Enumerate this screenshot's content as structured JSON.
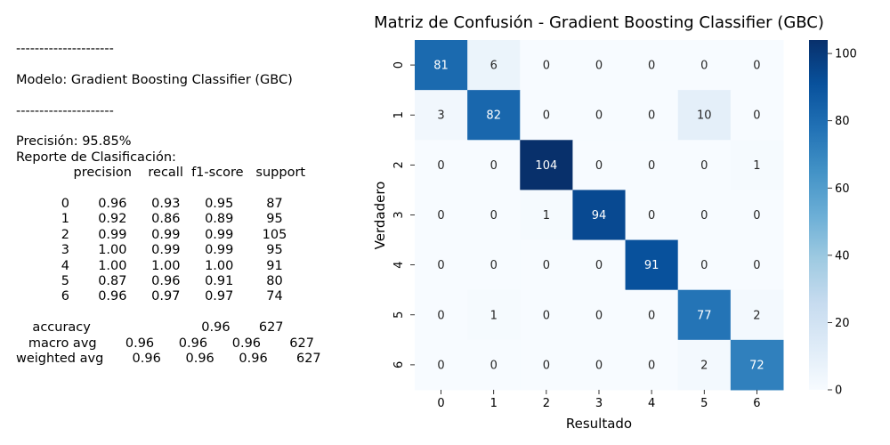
{
  "report_lines": [
    "---------------------",
    "",
    "Modelo: Gradient Boosting Classifier (GBC)",
    "",
    "---------------------",
    "",
    "Precisión: 95.85%",
    "Reporte de Clasificación:",
    "              precision    recall  f1-score   support",
    "",
    "           0       0.96      0.93      0.95        87",
    "           1       0.92      0.86      0.89        95",
    "           2       0.99      0.99      0.99       105",
    "           3       1.00      0.99      0.99        95",
    "           4       1.00      1.00      1.00        91",
    "           5       0.87      0.96      0.91        80",
    "           6       0.96      0.97      0.97        74",
    "",
    "    accuracy                           0.96       627",
    "   macro avg       0.96      0.96      0.96       627",
    "weighted avg       0.96      0.96      0.96       627"
  ],
  "chart_data": {
    "type": "heatmap",
    "title": "Matriz de Confusión - Gradient Boosting Classifier (GBC)",
    "xlabel": "Resultado",
    "ylabel": "Verdadero",
    "x_categories": [
      "0",
      "1",
      "2",
      "3",
      "4",
      "5",
      "6"
    ],
    "y_categories": [
      "0",
      "1",
      "2",
      "3",
      "4",
      "5",
      "6"
    ],
    "matrix": [
      [
        81,
        6,
        0,
        0,
        0,
        0,
        0
      ],
      [
        3,
        82,
        0,
        0,
        0,
        10,
        0
      ],
      [
        0,
        0,
        104,
        0,
        0,
        0,
        1
      ],
      [
        0,
        0,
        1,
        94,
        0,
        0,
        0
      ],
      [
        0,
        0,
        0,
        0,
        91,
        0,
        0
      ],
      [
        0,
        1,
        0,
        0,
        0,
        77,
        2
      ],
      [
        0,
        0,
        0,
        0,
        0,
        2,
        72
      ]
    ],
    "colormap": "Blues",
    "vmin": 0,
    "vmax": 104,
    "colorbar_ticks": [
      0,
      20,
      40,
      60,
      80,
      100
    ]
  }
}
